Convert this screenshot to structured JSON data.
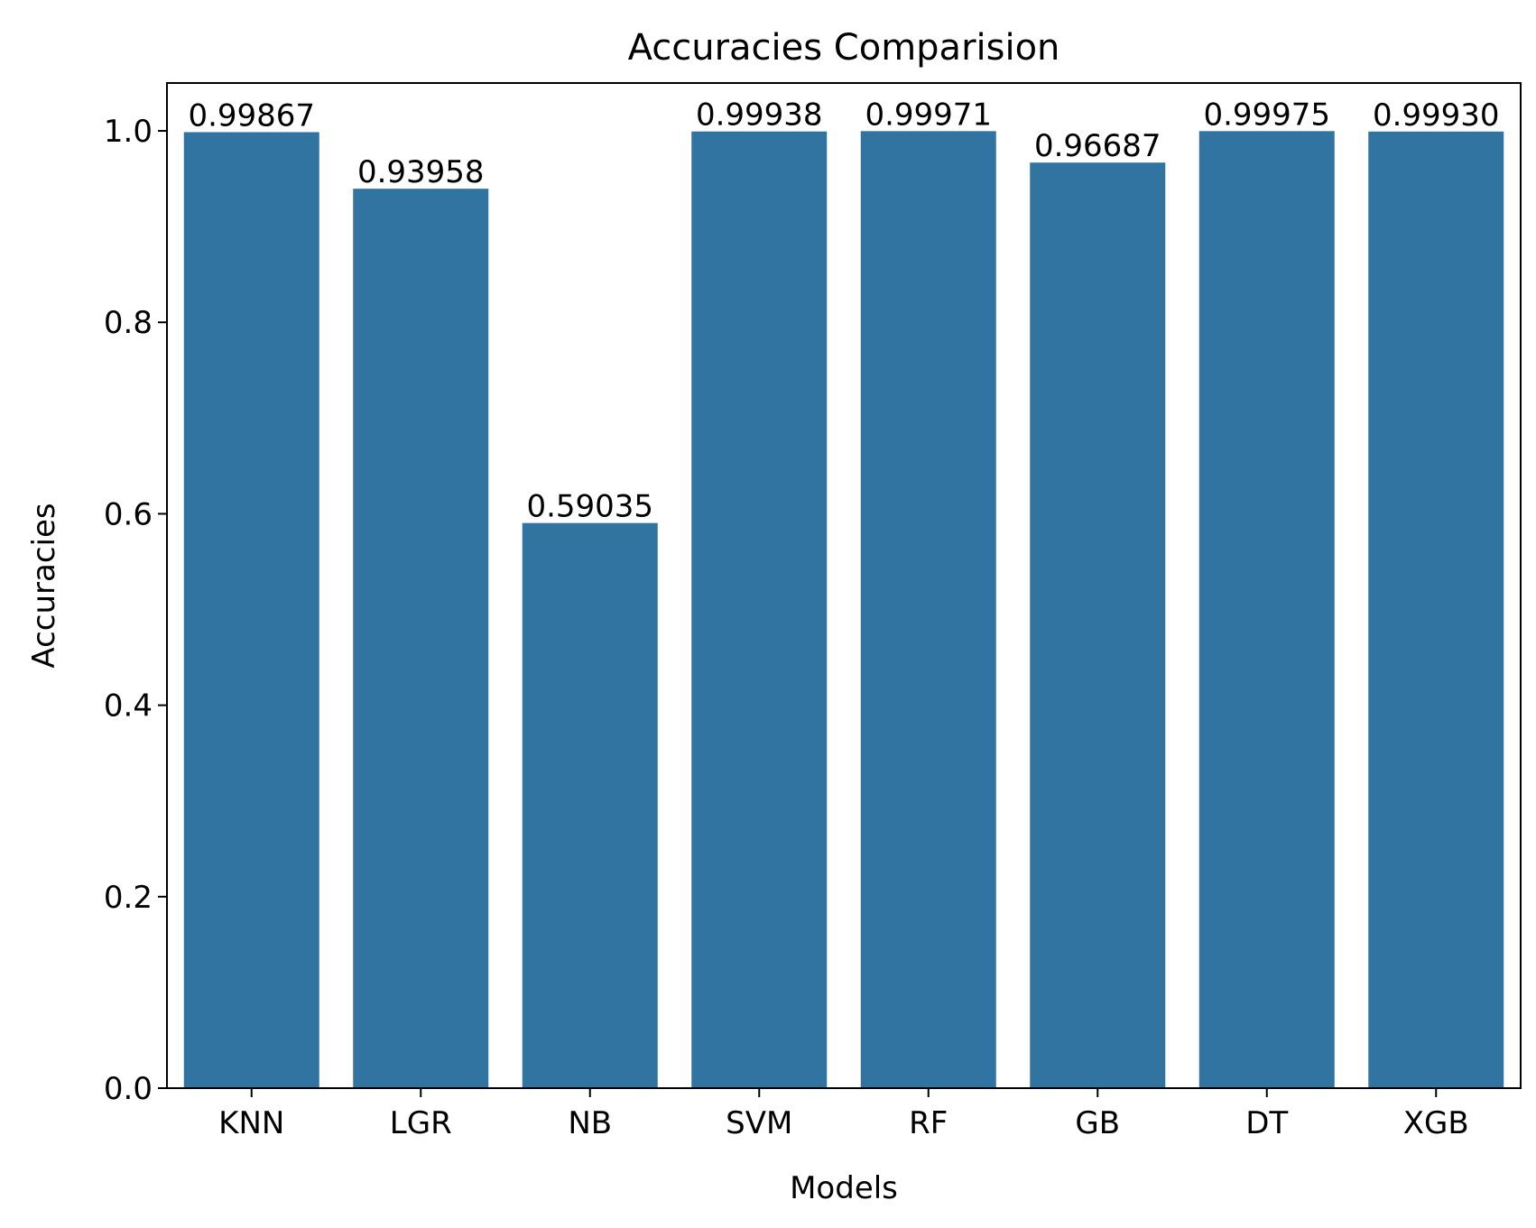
{
  "chart_data": {
    "type": "bar",
    "title": "Accuracies Comparision",
    "xlabel": "Models",
    "ylabel": "Accuracies",
    "categories": [
      "KNN",
      "LGR",
      "NB",
      "SVM",
      "RF",
      "GB",
      "DT",
      "XGB"
    ],
    "values": [
      0.99867,
      0.93958,
      0.59035,
      0.99938,
      0.99971,
      0.96687,
      0.99975,
      0.9993
    ],
    "value_labels": [
      "0.99867",
      "0.93958",
      "0.59035",
      "0.99938",
      "0.99971",
      "0.96687",
      "0.99975",
      "0.99930"
    ],
    "ylim": [
      0,
      1.05
    ],
    "yticks": [
      0.0,
      0.2,
      0.4,
      0.6,
      0.8,
      1.0
    ],
    "ytick_labels": [
      "0.0",
      "0.2",
      "0.4",
      "0.6",
      "0.8",
      "1.0"
    ],
    "grid": false,
    "legend": "none",
    "bar_color": "#3274a1"
  }
}
